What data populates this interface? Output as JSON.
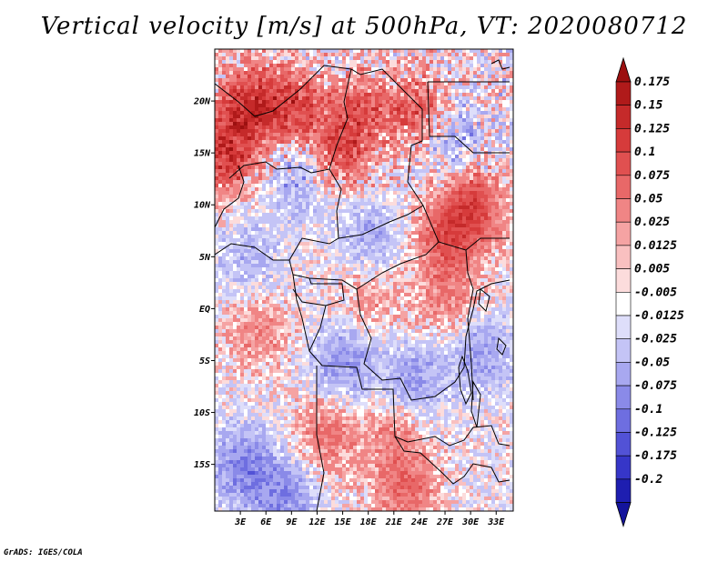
{
  "title": "Vertical velocity [m/s] at 500hPa, VT: 2020080712",
  "credit": "GrADS: IGES/COLA",
  "map": {
    "lat_range": [
      -19.5,
      25
    ],
    "lon_range": [
      0,
      35
    ],
    "lat_ticks": [
      {
        "value": 20,
        "label": "20N"
      },
      {
        "value": 15,
        "label": "15N"
      },
      {
        "value": 10,
        "label": "10N"
      },
      {
        "value": 5,
        "label": "5N"
      },
      {
        "value": 0,
        "label": "EQ"
      },
      {
        "value": -5,
        "label": "5S"
      },
      {
        "value": -10,
        "label": "10S"
      },
      {
        "value": -15,
        "label": "15S"
      }
    ],
    "lon_ticks": [
      {
        "value": 3,
        "label": "3E"
      },
      {
        "value": 6,
        "label": "6E"
      },
      {
        "value": 9,
        "label": "9E"
      },
      {
        "value": 12,
        "label": "12E"
      },
      {
        "value": 15,
        "label": "15E"
      },
      {
        "value": 18,
        "label": "18E"
      },
      {
        "value": 21,
        "label": "21E"
      },
      {
        "value": 24,
        "label": "24E"
      },
      {
        "value": 27,
        "label": "27E"
      },
      {
        "value": 30,
        "label": "30E"
      },
      {
        "value": 33,
        "label": "33E"
      }
    ],
    "field_centers": [
      {
        "lon": 4,
        "lat": 20,
        "v": 0.12
      },
      {
        "lon": 9,
        "lat": 19.5,
        "v": 0.1
      },
      {
        "lon": 17,
        "lat": 19,
        "v": 0.08
      },
      {
        "lon": 24,
        "lat": 19,
        "v": 0.1
      },
      {
        "lon": 1,
        "lat": 15,
        "v": 0.12
      },
      {
        "lon": 14,
        "lat": 15,
        "v": 0.09
      },
      {
        "lon": 30,
        "lat": 10,
        "v": 0.1
      },
      {
        "lon": 27,
        "lat": 7,
        "v": 0.08
      },
      {
        "lon": 18,
        "lat": 1,
        "v": 0.04
      },
      {
        "lon": 27,
        "lat": 1,
        "v": 0.05
      },
      {
        "lon": 5,
        "lat": -2,
        "v": 0.05
      },
      {
        "lon": 13,
        "lat": -12,
        "v": 0.06
      },
      {
        "lon": 21,
        "lat": -11,
        "v": 0.05
      },
      {
        "lon": 22,
        "lat": -17,
        "v": 0.07
      },
      {
        "lon": 10,
        "lat": 13,
        "v": -0.06
      },
      {
        "lon": 27,
        "lat": 17,
        "v": -0.07
      },
      {
        "lon": 4,
        "lat": 5,
        "v": -0.04
      },
      {
        "lon": 15,
        "lat": -5,
        "v": -0.07
      },
      {
        "lon": 23,
        "lat": -7,
        "v": -0.07
      },
      {
        "lon": 3,
        "lat": -15,
        "v": -0.08
      },
      {
        "lon": 8,
        "lat": -18,
        "v": -0.07
      },
      {
        "lon": 18,
        "lat": 7,
        "v": -0.05
      },
      {
        "lon": 31,
        "lat": -4,
        "v": -0.06
      }
    ]
  },
  "colorbar": {
    "entries": [
      {
        "label": "0.175",
        "color": "#b01a1a"
      },
      {
        "label": "0.15",
        "color": "#c52a2a"
      },
      {
        "label": "0.125",
        "color": "#d63b3b"
      },
      {
        "label": "0.1",
        "color": "#e05050"
      },
      {
        "label": "0.075",
        "color": "#e86868"
      },
      {
        "label": "0.05",
        "color": "#f08585"
      },
      {
        "label": "0.025",
        "color": "#f5a3a3"
      },
      {
        "label": "0.0125",
        "color": "#f9c0c0"
      },
      {
        "label": "0.005",
        "color": "#fcdcdc"
      },
      {
        "label": "-0.005",
        "color": "#ffffff"
      },
      {
        "label": "-0.0125",
        "color": "#dedefa"
      },
      {
        "label": "-0.025",
        "color": "#c4c4f6"
      },
      {
        "label": "-0.05",
        "color": "#a8a8f0"
      },
      {
        "label": "-0.075",
        "color": "#8a8ae8"
      },
      {
        "label": "-0.1",
        "color": "#6e6ee0"
      },
      {
        "label": "-0.125",
        "color": "#5252d6"
      },
      {
        "label": "-0.175",
        "color": "#3636c8"
      },
      {
        "label": "-0.2",
        "color": "#1e1eb0"
      }
    ],
    "top_color": "#9c1010",
    "bottom_color": "#14149c"
  }
}
